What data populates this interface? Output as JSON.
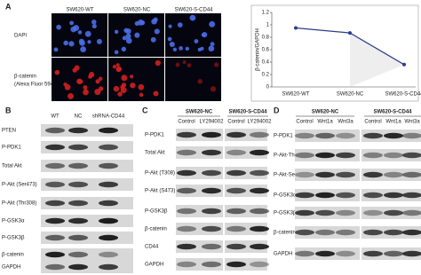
{
  "panels": {
    "a": {
      "label": "A",
      "columns": [
        "SW620-WT",
        "SW620-NC",
        "SW620-S-CD44"
      ],
      "rows": [
        {
          "label": "DAPI"
        },
        {
          "label": "β-catenin",
          "sublabel": "(Alexa Fluor 594)"
        }
      ],
      "chart": {
        "type": "line",
        "y_label": "β-catenin/GAPDH",
        "categories": [
          "SW620-WT",
          "SW620-NC",
          "SW620-S-CD44"
        ],
        "values": [
          0.95,
          0.87,
          0.36
        ],
        "color": "#2b3d8c",
        "ylim": [
          0,
          1.2
        ],
        "yticks": [
          0,
          0.2,
          0.4,
          0.6,
          0.8,
          1,
          1.2
        ]
      }
    },
    "b": {
      "label": "B",
      "lanes": [
        "WT",
        "NC",
        "shRNA-CD44"
      ],
      "rows": [
        "PTEN",
        "P-PDK1",
        "Total Akt",
        "P-Akt (Ser473)",
        "P-Akt (Thr308)",
        "P-GSK3α",
        "P-GSK3β",
        "β-catenin",
        "GAPDH"
      ]
    },
    "c": {
      "label": "C",
      "groups": [
        "SW620-NC",
        "SW620-S-CD44"
      ],
      "lanes": [
        "Control",
        "LY294002",
        "Control",
        "LY294002"
      ],
      "rows": [
        "P-PDK1",
        "Total Akt",
        "P-Akt (T308)",
        "P-Akt (S473)",
        "P-GSK3β",
        "β-catenin",
        "CD44",
        "GAPDH"
      ]
    },
    "d": {
      "label": "D",
      "groups": [
        "SW620-NC",
        "SW620-S-CD44"
      ],
      "lanes": [
        "Control",
        "Wnt1a",
        "Wnt3a",
        "Control",
        "Wnt1a",
        "Wnt3a"
      ],
      "rows": [
        "P-PDK1",
        "P-Akt-Thr308",
        "P-Akt-Ser473",
        "P-GSK3α",
        "P-GSK3β",
        "β-catenin",
        "GAPDH"
      ]
    }
  }
}
